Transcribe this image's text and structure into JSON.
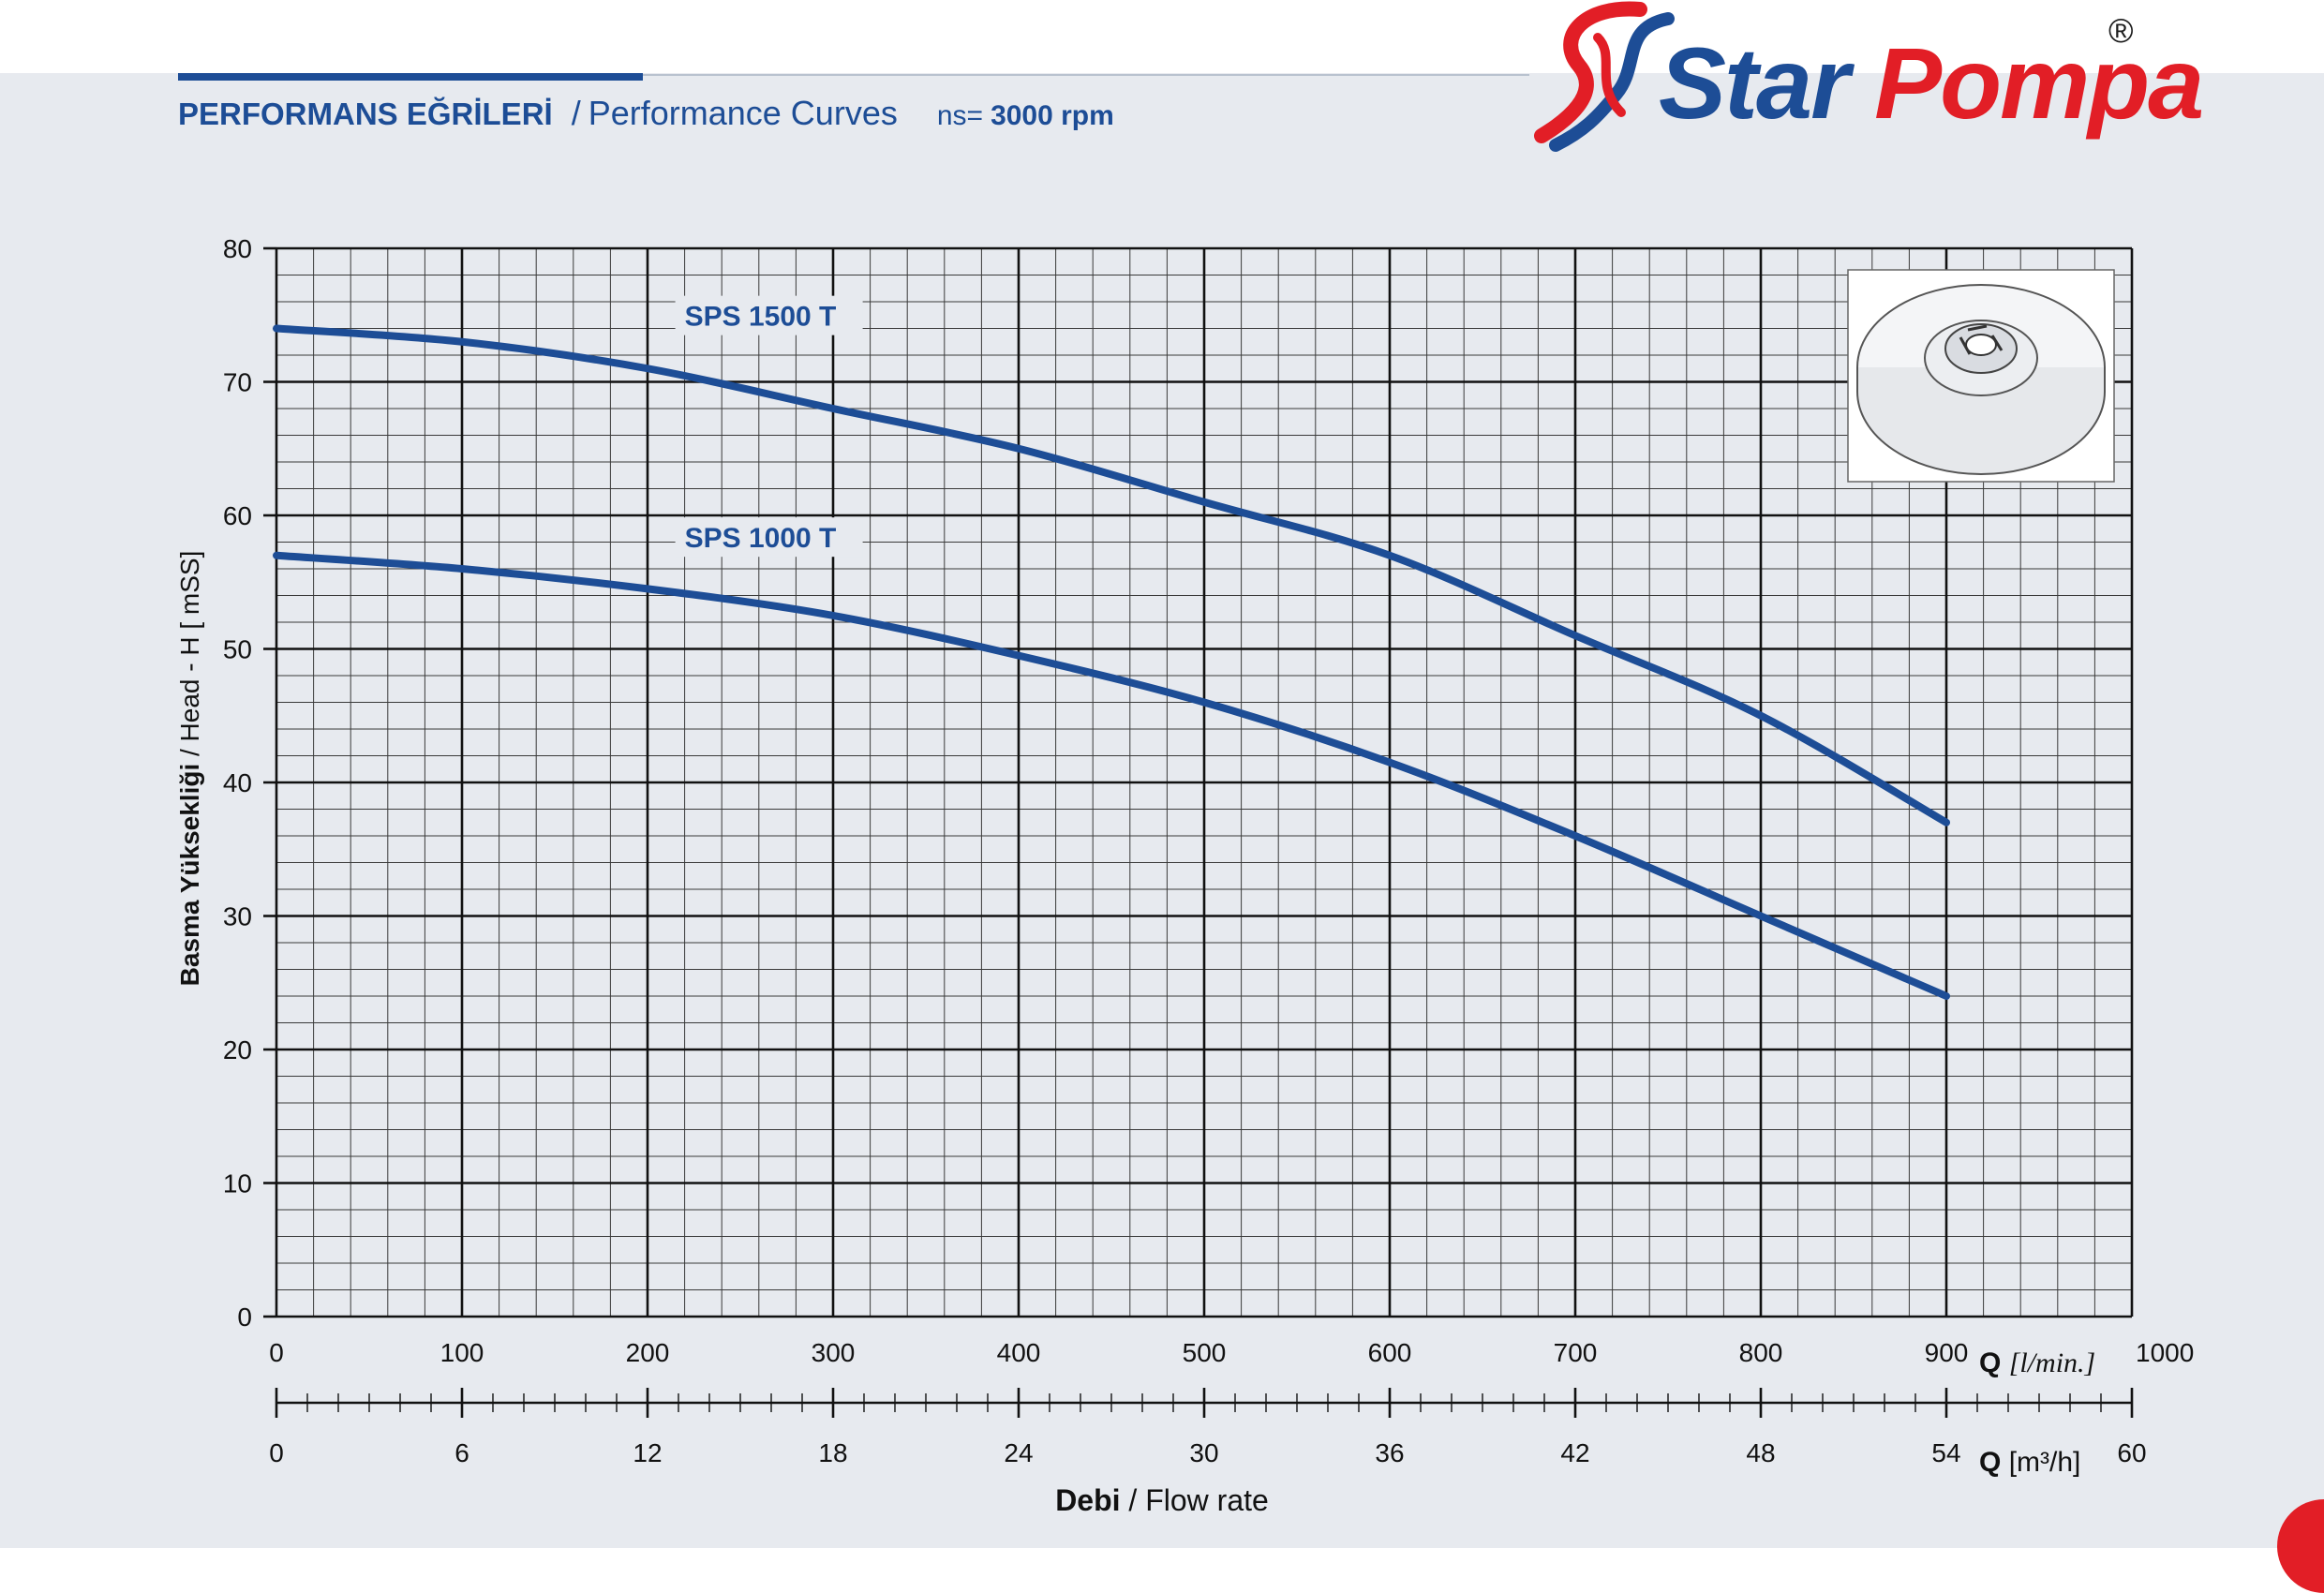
{
  "header": {
    "title_tr": "PERFORMANS EĞRİLERİ",
    "separator": "/",
    "title_en": "Performance Curves",
    "speed_label": "ns=",
    "speed_value": "3000 rpm"
  },
  "logo": {
    "word1": "Star",
    "word2": "Pompa",
    "reg_mark": "®"
  },
  "colors": {
    "brand_blue": "#1d4d96",
    "brand_red": "#e21e26",
    "curve": "#1d4d96",
    "grid": "#1a1a1a",
    "background": "#e7eaef"
  },
  "chart_data": {
    "type": "line",
    "ylabel": "Basma Yüksekliği / Head - H [ mSS]",
    "ylabel_bold": "Basma Yüksekliği",
    "ylabel_rest": " / Head - H [ mSS]",
    "ylim": [
      0,
      80
    ],
    "yticks": [
      "0",
      "10",
      "20",
      "30",
      "40",
      "50",
      "60",
      "70",
      "80"
    ],
    "xlim": [
      0,
      1000
    ],
    "xticks": [
      "0",
      "100",
      "200",
      "300",
      "400",
      "500",
      "600",
      "700",
      "800",
      "900",
      "1000"
    ],
    "x_unit_label_bold": "Q",
    "x_unit_label_rest": "[l/min.]",
    "x2_lim": [
      0,
      60
    ],
    "x2_ticks": [
      "0",
      "6",
      "12",
      "18",
      "24",
      "30",
      "36",
      "42",
      "48",
      "54",
      "60"
    ],
    "x2_unit_label_bold": "Q",
    "x2_unit_label_rest": "[m³/h]",
    "xlabel_bold": "Debi",
    "xlabel_rest": " / Flow rate",
    "grid": true,
    "series": [
      {
        "name": "SPS 1500 T",
        "x": [
          0,
          100,
          200,
          300,
          400,
          500,
          600,
          700,
          800,
          900
        ],
        "y": [
          74,
          73,
          71,
          68,
          65,
          61,
          57,
          51,
          45,
          37
        ]
      },
      {
        "name": "SPS 1000 T",
        "x": [
          0,
          100,
          200,
          300,
          400,
          500,
          600,
          700,
          800,
          900
        ],
        "y": [
          57,
          56,
          54.5,
          52.5,
          49.5,
          46,
          41.5,
          36,
          30,
          24
        ]
      }
    ]
  }
}
